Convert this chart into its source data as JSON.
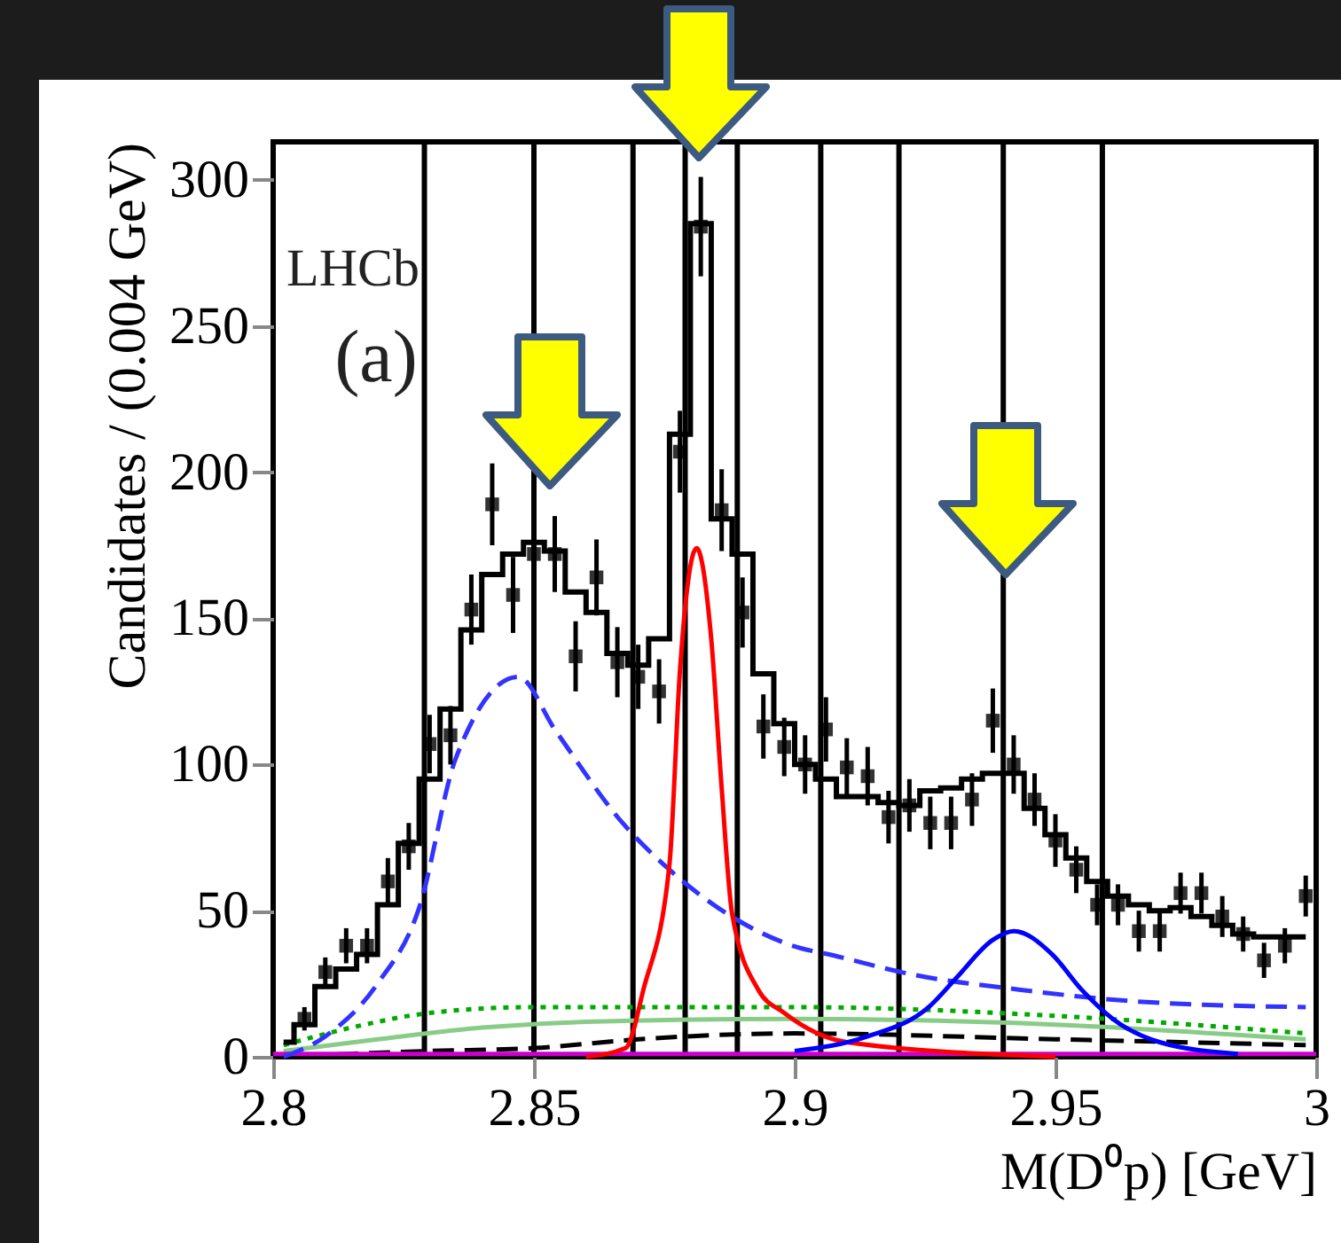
{
  "chart_data": {
    "type": "scatter",
    "xlabel": "M(D⁰p) [GeV]",
    "ylabel": "Candidates / (0.004 GeV)",
    "xlim": [
      2.8,
      3.0
    ],
    "ylim": [
      0,
      313
    ],
    "xticks": [
      2.8,
      2.85,
      2.9,
      2.95,
      3
    ],
    "yticks": [
      0,
      50,
      100,
      150,
      200,
      250,
      300
    ],
    "grid": false,
    "annotations": [
      "LHCb",
      "(a)"
    ],
    "ref_lines": [
      {
        "axis": "x",
        "value": 2.829
      },
      {
        "axis": "x",
        "value": 2.85
      },
      {
        "axis": "x",
        "value": 2.869
      },
      {
        "axis": "x",
        "value": 2.879
      },
      {
        "axis": "x",
        "value": 2.889
      },
      {
        "axis": "x",
        "value": 2.905
      },
      {
        "axis": "x",
        "value": 2.92
      },
      {
        "axis": "x",
        "value": 2.94
      },
      {
        "axis": "x",
        "value": 2.959
      }
    ],
    "series": [
      {
        "type": "line",
        "color": "#88cc88",
        "line_style": "solid",
        "x": [
          2.802,
          2.82,
          2.84,
          2.86,
          2.9,
          2.95,
          2.998
        ],
        "values": [
          2,
          6,
          10,
          12,
          13,
          11,
          6
        ]
      },
      {
        "type": "line",
        "color": "#00aa00",
        "line_style": "dotted",
        "x": [
          2.802,
          2.815,
          2.83,
          2.85,
          2.9,
          2.95,
          2.998
        ],
        "values": [
          4,
          10,
          15,
          17,
          17,
          14,
          8
        ]
      },
      {
        "type": "line",
        "color": "#000000",
        "line_style": "dashed",
        "x": [
          2.8,
          2.83,
          2.85,
          2.87,
          2.9,
          2.95,
          2.998
        ],
        "values": [
          0,
          2,
          3,
          6,
          8,
          6,
          4
        ]
      },
      {
        "type": "line",
        "color": "#cc00cc",
        "line_style": "solid",
        "x": [
          2.8,
          3.0
        ],
        "values": [
          1,
          1
        ]
      },
      {
        "type": "line",
        "color": "#3333ff",
        "line_style": "dashed",
        "x": [
          2.802,
          2.81,
          2.82,
          2.828,
          2.835,
          2.847,
          2.854,
          2.867,
          2.876,
          2.887,
          2.898,
          2.909,
          2.923,
          2.943,
          2.965,
          2.998
        ],
        "values": [
          0,
          7,
          25,
          51,
          102,
          130,
          112,
          80,
          64,
          49,
          39,
          34,
          28,
          23,
          19,
          17
        ]
      },
      {
        "type": "line",
        "color": "#ff0000",
        "line_style": "solid",
        "x": [
          2.86,
          2.8676,
          2.871,
          2.876,
          2.878,
          2.8812,
          2.884,
          2.886,
          2.888,
          2.893,
          2.898,
          2.91,
          2.95
        ],
        "values": [
          0,
          3,
          23,
          66,
          132,
          174,
          143,
          92,
          49,
          23,
          15,
          5,
          0
        ]
      },
      {
        "type": "line",
        "color": "#0000ff",
        "line_style": "solid",
        "x": [
          2.9,
          2.914,
          2.9257,
          2.931,
          2.938,
          2.942,
          2.9494,
          2.955,
          2.961,
          2.97,
          2.985
        ],
        "values": [
          2,
          7,
          17,
          27,
          40,
          43,
          35,
          23,
          13,
          5,
          1
        ]
      },
      {
        "type": "step",
        "color": "#000000",
        "x": [
          2.802,
          2.806,
          2.81,
          2.814,
          2.818,
          2.822,
          2.826,
          2.83,
          2.834,
          2.838,
          2.842,
          2.846,
          2.85,
          2.854,
          2.858,
          2.862,
          2.866,
          2.87,
          2.874,
          2.878,
          2.882,
          2.886,
          2.89,
          2.894,
          2.898,
          2.902,
          2.906,
          2.91,
          2.914,
          2.918,
          2.922,
          2.926,
          2.93,
          2.934,
          2.938,
          2.942,
          2.946,
          2.95,
          2.954,
          2.958,
          2.962,
          2.966,
          2.97,
          2.974,
          2.978,
          2.982,
          2.986,
          2.99,
          2.994,
          2.998
        ],
        "values": [
          5,
          11,
          24,
          30,
          35,
          52,
          73,
          95,
          119,
          146,
          165,
          172,
          176,
          173,
          159,
          152,
          138,
          134,
          143,
          213,
          285,
          184,
          172,
          131,
          114,
          100,
          95,
          89,
          89,
          87,
          86,
          91,
          92,
          95,
          97,
          97,
          85,
          76,
          68,
          60,
          55,
          52,
          50,
          51,
          48,
          45,
          42,
          41,
          41,
          41
        ]
      },
      {
        "color": "#000000",
        "marker": "square",
        "x": [
          2.806,
          2.81,
          2.814,
          2.818,
          2.822,
          2.826,
          2.83,
          2.834,
          2.838,
          2.842,
          2.846,
          2.85,
          2.854,
          2.858,
          2.862,
          2.866,
          2.87,
          2.874,
          2.878,
          2.882,
          2.886,
          2.89,
          2.894,
          2.898,
          2.902,
          2.906,
          2.91,
          2.914,
          2.918,
          2.922,
          2.926,
          2.93,
          2.934,
          2.938,
          2.942,
          2.946,
          2.95,
          2.954,
          2.958,
          2.962,
          2.966,
          2.97,
          2.974,
          2.978,
          2.982,
          2.986,
          2.99,
          2.994,
          2.998
        ],
        "values": [
          13,
          29,
          38,
          38,
          60,
          72,
          107,
          110,
          153,
          189,
          158,
          172,
          172,
          137,
          164,
          135,
          130,
          125,
          207,
          284,
          187,
          152,
          113,
          106,
          100,
          112,
          99,
          96,
          82,
          86,
          80,
          80,
          88,
          115,
          100,
          88,
          74,
          64,
          52,
          52,
          43,
          43,
          56,
          56,
          48,
          42,
          33,
          38,
          55
        ],
        "errors": [
          4,
          5,
          6,
          6,
          8,
          8,
          10,
          10,
          12,
          14,
          13,
          13,
          13,
          12,
          13,
          12,
          11,
          11,
          14,
          17,
          14,
          12,
          11,
          10,
          10,
          11,
          10,
          10,
          9,
          9,
          9,
          9,
          9,
          11,
          10,
          9,
          9,
          8,
          7,
          7,
          7,
          7,
          7,
          7,
          7,
          6,
          6,
          6,
          7
        ]
      }
    ]
  }
}
